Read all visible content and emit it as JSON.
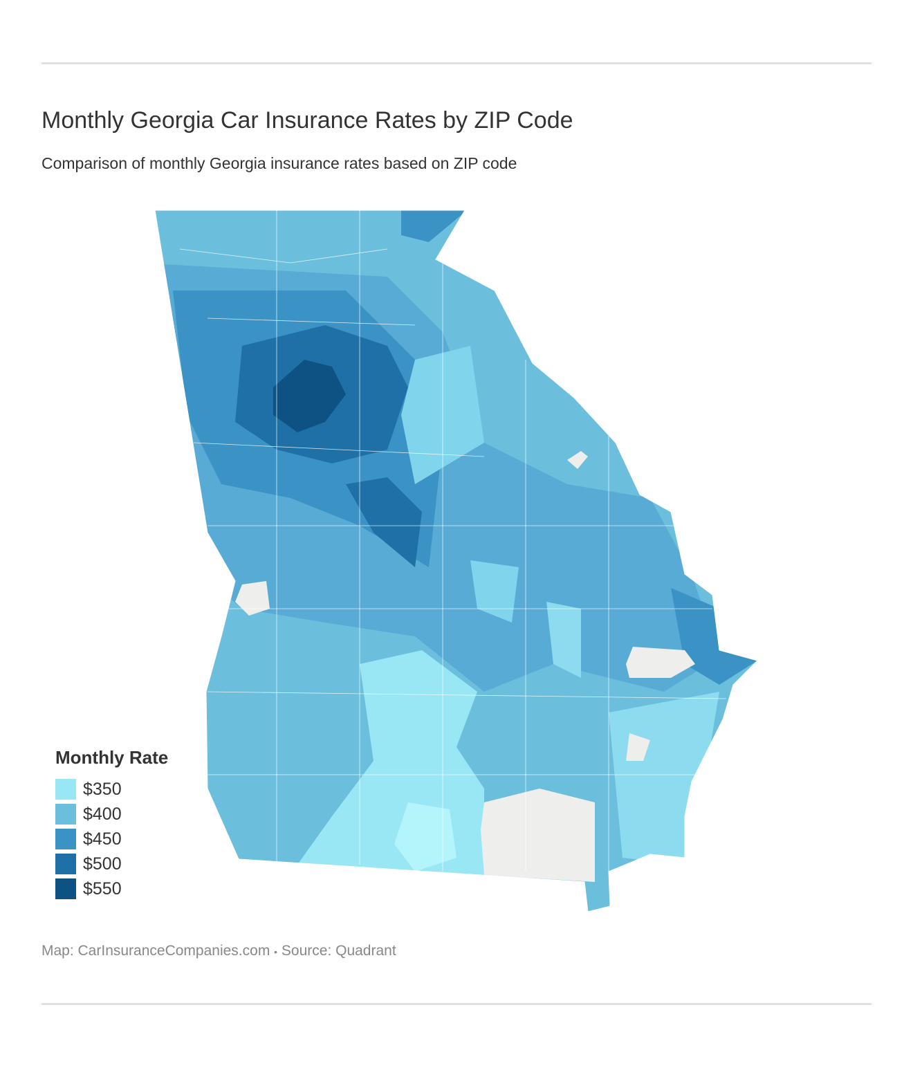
{
  "title": "Monthly Georgia Car Insurance Rates by ZIP Code",
  "subtitle": "Comparison of monthly Georgia insurance rates based on ZIP code",
  "map": {
    "region": "Georgia",
    "unit": "ZIP code",
    "no_data_color": "#eeeeec",
    "boundary_color": "#ffffff"
  },
  "legend": {
    "title": "Monthly Rate",
    "items": [
      {
        "label": "$350",
        "color": "#99e6f5"
      },
      {
        "label": "$400",
        "color": "#6bbfdd"
      },
      {
        "label": "$450",
        "color": "#3a93c4"
      },
      {
        "label": "$500",
        "color": "#1f70a6"
      },
      {
        "label": "$550",
        "color": "#0e5183"
      }
    ]
  },
  "footer": {
    "map_credit": "Map: CarInsuranceCompanies.com",
    "separator": "•",
    "source": "Source: Quadrant"
  }
}
